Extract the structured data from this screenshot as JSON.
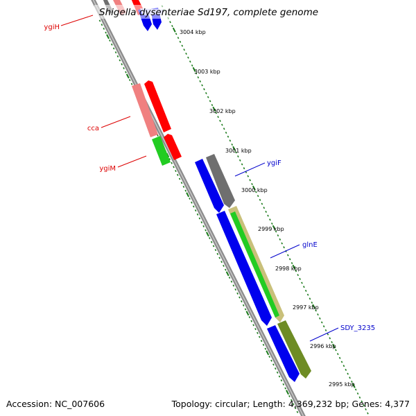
{
  "title": "Shigella dysenteriae Sd197, complete genome",
  "footer": {
    "accession": "Accession: NC_007606",
    "topology": "Topology: circular; Length: 4,369,232 bp; Genes: 4,377"
  },
  "kbp_labels": [
    "3004 kbp",
    "3003 kbp",
    "3002 kbp",
    "3001 kbp",
    "3000 kbp",
    "2999 kbp",
    "2998 kbp",
    "2997 kbp",
    "2996 kbp",
    "2995 kbp"
  ],
  "gene_labels": [
    {
      "name": "ygiH",
      "color": "#dd0000"
    },
    {
      "name": "cca",
      "color": "#dd0000"
    },
    {
      "name": "ygiM",
      "color": "#dd0000"
    },
    {
      "name": "ygiF",
      "color": "#0000cc"
    },
    {
      "name": "glnE",
      "color": "#0000cc"
    },
    {
      "name": "SDY_3235",
      "color": "#0000cc"
    }
  ],
  "colors": {
    "backbone": "#8c8c8c",
    "tick": "#1a7a1a",
    "red": "#ff0000",
    "salmon": "#f08080",
    "blue": "#0000ee",
    "green": "#22cc22",
    "gray": "#6f6f6f",
    "olive": "#6e8c24",
    "khaki": "#c9c07a",
    "lavender": "#ccccff"
  }
}
